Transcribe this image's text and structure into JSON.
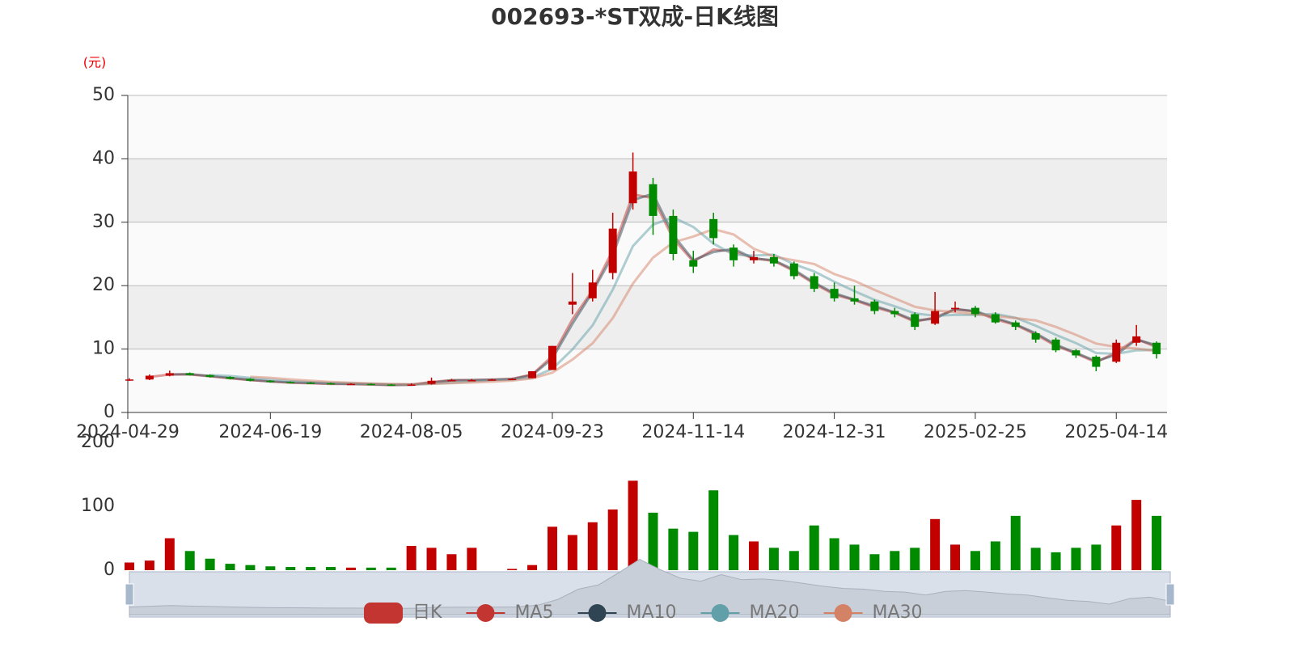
{
  "chart_data": {
    "type": "candlestick",
    "title": "002693-*ST双成-日K线图",
    "y_unit": "(元)",
    "categories": [
      "2024-04-29",
      null,
      null,
      null,
      null,
      null,
      null,
      "2024-06-19",
      null,
      null,
      null,
      null,
      null,
      null,
      "2024-08-05",
      null,
      null,
      null,
      null,
      null,
      null,
      "2024-09-23",
      null,
      null,
      null,
      null,
      null,
      null,
      "2024-11-14",
      null,
      null,
      null,
      null,
      null,
      null,
      "2024-12-31",
      null,
      null,
      null,
      null,
      null,
      null,
      "2025-02-25",
      null,
      null,
      null,
      null,
      null,
      null,
      "2025-04-14",
      null,
      null
    ],
    "up_color": "#c20000",
    "down_color": "#008a00",
    "series": [
      {
        "name": "日K",
        "color": "#c23531",
        "values": [
          [
            5.1,
            5.2,
            5.0,
            5.4
          ],
          [
            5.2,
            5.8,
            5.1,
            6.0
          ],
          [
            5.8,
            6.2,
            5.7,
            6.6
          ],
          [
            6.2,
            5.9,
            5.8,
            6.3
          ],
          [
            5.9,
            5.6,
            5.5,
            6.0
          ],
          [
            5.6,
            5.3,
            5.2,
            5.7
          ],
          [
            5.3,
            5.0,
            4.9,
            5.4
          ],
          [
            5.0,
            4.8,
            4.7,
            5.1
          ],
          [
            4.8,
            4.7,
            4.6,
            4.9
          ],
          [
            4.7,
            4.6,
            4.5,
            4.8
          ],
          [
            4.6,
            4.5,
            4.4,
            4.7
          ],
          [
            4.5,
            4.5,
            4.4,
            4.6
          ],
          [
            4.5,
            4.4,
            4.3,
            4.6
          ],
          [
            4.4,
            4.3,
            4.2,
            4.5
          ],
          [
            4.3,
            4.4,
            4.2,
            4.6
          ],
          [
            4.5,
            5.0,
            4.4,
            5.5
          ],
          [
            5.0,
            5.1,
            4.9,
            5.3
          ],
          [
            5.1,
            5.1,
            5.0,
            5.3
          ],
          [
            5.1,
            5.2,
            5.1,
            5.3
          ],
          [
            5.2,
            5.3,
            5.2,
            5.4
          ],
          [
            5.4,
            6.5,
            5.4,
            6.5
          ],
          [
            6.7,
            10.5,
            6.7,
            10.5
          ],
          [
            17.0,
            17.5,
            15.5,
            22.0
          ],
          [
            18.0,
            20.5,
            17.5,
            22.5
          ],
          [
            22.0,
            29.0,
            21.0,
            31.5
          ],
          [
            33.0,
            38.0,
            32.0,
            41.0
          ],
          [
            36.0,
            31.0,
            28.0,
            37.0
          ],
          [
            31.0,
            25.0,
            24.0,
            32.0
          ],
          [
            24.0,
            23.0,
            22.0,
            25.5
          ],
          [
            30.5,
            27.5,
            26.5,
            31.5
          ],
          [
            26.0,
            24.0,
            23.0,
            26.5
          ],
          [
            24.0,
            24.5,
            23.5,
            25.5
          ],
          [
            24.5,
            23.5,
            23.0,
            25.0
          ],
          [
            23.5,
            21.5,
            21.0,
            23.8
          ],
          [
            21.5,
            19.5,
            19.0,
            22.0
          ],
          [
            19.5,
            18.0,
            17.5,
            20.5
          ],
          [
            18.0,
            17.5,
            17.0,
            20.0
          ],
          [
            17.5,
            16.0,
            15.5,
            17.8
          ],
          [
            16.0,
            15.5,
            15.0,
            16.5
          ],
          [
            15.5,
            13.5,
            13.0,
            15.8
          ],
          [
            14.0,
            16.0,
            13.8,
            19.0
          ],
          [
            16.5,
            16.5,
            15.8,
            17.5
          ],
          [
            16.5,
            15.5,
            15.0,
            16.8
          ],
          [
            15.5,
            14.2,
            14.0,
            15.8
          ],
          [
            14.2,
            13.5,
            13.0,
            14.5
          ],
          [
            12.5,
            11.5,
            11.0,
            12.8
          ],
          [
            11.5,
            9.8,
            9.5,
            11.8
          ],
          [
            9.8,
            9.0,
            8.6,
            10.0
          ],
          [
            8.8,
            7.2,
            6.5,
            9.0
          ],
          [
            8.0,
            11.0,
            7.8,
            11.5
          ],
          [
            11.0,
            12.0,
            10.5,
            13.8
          ],
          [
            11.0,
            9.2,
            8.5,
            11.2
          ]
        ]
      },
      {
        "name": "MA5",
        "color": "#c23531",
        "values": [
          null,
          5.6,
          6.0,
          6.0,
          5.7,
          5.4,
          5.1,
          4.9,
          4.7,
          4.6,
          4.5,
          4.5,
          4.4,
          4.3,
          4.4,
          4.8,
          5.1,
          5.1,
          5.2,
          5.3,
          6.0,
          8.9,
          14.7,
          19.3,
          25.6,
          34.4,
          33.8,
          27.4,
          23.8,
          25.7,
          25.4,
          24.3,
          23.9,
          22.3,
          20.3,
          18.6,
          17.7,
          16.6,
          15.7,
          14.3,
          15.0,
          16.3,
          15.9,
          14.7,
          13.8,
          12.3,
          10.5,
          9.3,
          7.9,
          9.5,
          11.6,
          10.3
        ]
      },
      {
        "name": "MA10",
        "color": "#2f4554",
        "values": [
          null,
          null,
          6.0,
          6.05,
          5.75,
          5.45,
          5.15,
          4.9,
          4.75,
          4.65,
          4.55,
          4.5,
          4.45,
          4.35,
          4.35,
          4.7,
          5.05,
          5.1,
          5.15,
          5.25,
          5.9,
          8.5,
          14.0,
          19.0,
          24.8,
          33.5,
          34.5,
          28.0,
          24.0,
          25.3,
          25.8,
          24.3,
          24.0,
          22.5,
          20.5,
          18.8,
          17.8,
          16.8,
          15.8,
          14.5,
          14.8,
          16.3,
          16.0,
          14.9,
          13.9,
          12.5,
          10.7,
          9.4,
          8.1,
          9.1,
          11.5,
          10.6
        ]
      },
      {
        "name": "MA20",
        "color": "#61a0a8",
        "values": [
          null,
          null,
          null,
          null,
          5.88,
          5.75,
          5.45,
          5.18,
          4.95,
          4.78,
          4.65,
          4.58,
          4.5,
          4.43,
          4.4,
          4.53,
          4.7,
          4.9,
          5.1,
          5.18,
          5.53,
          6.88,
          9.95,
          13.75,
          19.38,
          26.25,
          29.63,
          30.75,
          29.25,
          26.63,
          24.88,
          24.75,
          24.88,
          23.38,
          22.25,
          20.63,
          19.13,
          17.75,
          16.75,
          15.63,
          15.25,
          15.38,
          15.38,
          15.55,
          14.93,
          13.68,
          12.25,
          10.95,
          9.38,
          9.25,
          9.8,
          9.85
        ]
      },
      {
        "name": "MA30",
        "color": "#d48265",
        "values": [
          null,
          null,
          null,
          null,
          null,
          null,
          5.63,
          5.47,
          5.22,
          5.0,
          4.82,
          4.68,
          4.58,
          4.5,
          4.45,
          4.52,
          4.62,
          4.72,
          4.85,
          5.02,
          5.37,
          6.28,
          8.35,
          10.92,
          14.88,
          20.33,
          24.42,
          26.83,
          27.75,
          28.92,
          28.08,
          25.83,
          24.58,
          24.0,
          23.42,
          21.83,
          20.75,
          19.33,
          18.0,
          16.67,
          16.08,
          15.83,
          15.5,
          15.2,
          14.87,
          14.53,
          13.5,
          12.25,
          10.87,
          10.33,
          10.08,
          9.7
        ]
      }
    ],
    "ylim": [
      0,
      50
    ],
    "yticks": [
      0,
      10,
      20,
      30,
      40,
      50
    ],
    "grid": true,
    "split_area": true,
    "volume": {
      "values": [
        12,
        15,
        50,
        30,
        18,
        10,
        8,
        6,
        5,
        5,
        5,
        4,
        4,
        4,
        38,
        35,
        25,
        35,
        0,
        2,
        8,
        68,
        55,
        75,
        95,
        140,
        90,
        65,
        60,
        125,
        55,
        45,
        35,
        30,
        70,
        50,
        40,
        25,
        30,
        35,
        80,
        40,
        30,
        45,
        85,
        35,
        28,
        35,
        40,
        70,
        110,
        85
      ],
      "ylim": [
        0,
        200
      ],
      "yticks": [
        0,
        100,
        200
      ]
    },
    "legend": "bottom"
  }
}
